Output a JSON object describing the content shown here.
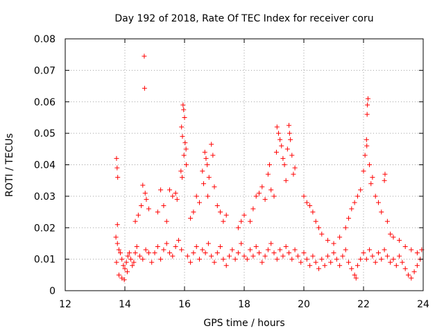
{
  "chart_data": {
    "type": "scatter",
    "title": "Day 192 of 2018, Rate Of TEC Index for receiver coru",
    "xlabel": "GPS time / hours",
    "ylabel": "ROTI / TECUs",
    "xlim": [
      12,
      24
    ],
    "ylim": [
      0,
      0.08
    ],
    "xticks": [
      "12",
      "14",
      "16",
      "18",
      "20",
      "22",
      "24"
    ],
    "yticks": [
      "0",
      "0.01",
      "0.02",
      "0.03",
      "0.04",
      "0.05",
      "0.06",
      "0.07",
      "0.08"
    ],
    "grid": true,
    "marker": "+",
    "color": "#ff0000",
    "series": [
      {
        "name": "ROTI",
        "points": [
          [
            13.72,
            0.042
          ],
          [
            13.74,
            0.039
          ],
          [
            13.76,
            0.036
          ],
          [
            13.75,
            0.021
          ],
          [
            14.65,
            0.0745
          ],
          [
            14.66,
            0.0643
          ],
          [
            15.95,
            0.059
          ],
          [
            15.97,
            0.0575
          ],
          [
            16.0,
            0.055
          ],
          [
            15.9,
            0.052
          ],
          [
            15.93,
            0.049
          ],
          [
            16.02,
            0.047
          ],
          [
            16.05,
            0.045
          ],
          [
            15.98,
            0.043
          ],
          [
            16.06,
            0.04
          ],
          [
            15.88,
            0.038
          ],
          [
            15.92,
            0.036
          ],
          [
            16.68,
            0.044
          ],
          [
            16.72,
            0.042
          ],
          [
            16.76,
            0.04
          ],
          [
            16.9,
            0.0465
          ],
          [
            16.95,
            0.043
          ],
          [
            16.6,
            0.038
          ],
          [
            16.82,
            0.036
          ],
          [
            16.64,
            0.034
          ],
          [
            17.0,
            0.033
          ],
          [
            16.78,
            0.03
          ],
          [
            19.1,
            0.052
          ],
          [
            19.15,
            0.05
          ],
          [
            19.2,
            0.048
          ],
          [
            19.25,
            0.046
          ],
          [
            19.08,
            0.044
          ],
          [
            19.3,
            0.042
          ],
          [
            19.5,
            0.0525
          ],
          [
            19.52,
            0.05
          ],
          [
            19.55,
            0.048
          ],
          [
            19.45,
            0.045
          ],
          [
            19.6,
            0.043
          ],
          [
            19.35,
            0.04
          ],
          [
            19.7,
            0.039
          ],
          [
            19.65,
            0.037
          ],
          [
            18.85,
            0.04
          ],
          [
            18.8,
            0.037
          ],
          [
            19.4,
            0.035
          ],
          [
            22.15,
            0.061
          ],
          [
            22.13,
            0.059
          ],
          [
            22.12,
            0.056
          ],
          [
            22.1,
            0.048
          ],
          [
            22.11,
            0.046
          ],
          [
            22.05,
            0.043
          ],
          [
            22.2,
            0.04
          ],
          [
            22.0,
            0.038
          ],
          [
            22.3,
            0.036
          ],
          [
            22.25,
            0.034
          ],
          [
            22.72,
            0.037
          ],
          [
            22.7,
            0.035
          ],
          [
            14.6,
            0.0335
          ],
          [
            14.68,
            0.031
          ],
          [
            14.72,
            0.029
          ],
          [
            14.55,
            0.027
          ],
          [
            14.45,
            0.024
          ],
          [
            14.35,
            0.022
          ],
          [
            14.8,
            0.026
          ],
          [
            15.5,
            0.032
          ],
          [
            15.6,
            0.03
          ],
          [
            15.7,
            0.031
          ],
          [
            15.75,
            0.029
          ],
          [
            15.3,
            0.027
          ],
          [
            15.1,
            0.025
          ],
          [
            15.2,
            0.032
          ],
          [
            15.4,
            0.022
          ],
          [
            16.4,
            0.03
          ],
          [
            16.5,
            0.028
          ],
          [
            16.3,
            0.025
          ],
          [
            16.2,
            0.023
          ],
          [
            17.1,
            0.027
          ],
          [
            17.2,
            0.025
          ],
          [
            17.3,
            0.022
          ],
          [
            17.4,
            0.024
          ],
          [
            17.8,
            0.02
          ],
          [
            17.9,
            0.022
          ],
          [
            18.0,
            0.024
          ],
          [
            18.2,
            0.022
          ],
          [
            18.3,
            0.026
          ],
          [
            18.4,
            0.03
          ],
          [
            18.5,
            0.031
          ],
          [
            18.6,
            0.033
          ],
          [
            18.7,
            0.029
          ],
          [
            18.9,
            0.032
          ],
          [
            19.0,
            0.03
          ],
          [
            20.0,
            0.03
          ],
          [
            20.1,
            0.028
          ],
          [
            20.2,
            0.027
          ],
          [
            20.3,
            0.025
          ],
          [
            20.4,
            0.022
          ],
          [
            20.5,
            0.02
          ],
          [
            20.6,
            0.018
          ],
          [
            20.8,
            0.016
          ],
          [
            21.0,
            0.015
          ],
          [
            21.2,
            0.017
          ],
          [
            21.4,
            0.02
          ],
          [
            21.5,
            0.023
          ],
          [
            21.6,
            0.026
          ],
          [
            21.7,
            0.028
          ],
          [
            21.8,
            0.03
          ],
          [
            21.9,
            0.032
          ],
          [
            22.4,
            0.03
          ],
          [
            22.5,
            0.028
          ],
          [
            22.6,
            0.025
          ],
          [
            22.8,
            0.022
          ],
          [
            22.9,
            0.018
          ],
          [
            23.0,
            0.017
          ],
          [
            23.2,
            0.016
          ],
          [
            23.4,
            0.014
          ],
          [
            23.6,
            0.013
          ],
          [
            23.8,
            0.012
          ],
          [
            23.95,
            0.013
          ],
          [
            13.7,
            0.017
          ],
          [
            13.75,
            0.015
          ],
          [
            13.8,
            0.013
          ],
          [
            13.85,
            0.012
          ],
          [
            13.9,
            0.01
          ],
          [
            13.95,
            0.008
          ],
          [
            14.0,
            0.007
          ],
          [
            14.05,
            0.009
          ],
          [
            14.1,
            0.011
          ],
          [
            14.15,
            0.012
          ],
          [
            14.2,
            0.01
          ],
          [
            14.25,
            0.008
          ],
          [
            14.3,
            0.009
          ],
          [
            14.35,
            0.012
          ],
          [
            14.4,
            0.014
          ],
          [
            14.5,
            0.011
          ],
          [
            14.6,
            0.01
          ],
          [
            14.7,
            0.013
          ],
          [
            14.8,
            0.012
          ],
          [
            14.9,
            0.009
          ],
          [
            13.72,
            0.009
          ],
          [
            13.8,
            0.005
          ],
          [
            13.9,
            0.004
          ],
          [
            13.98,
            0.0035
          ],
          [
            14.08,
            0.006
          ],
          [
            15.0,
            0.012
          ],
          [
            15.1,
            0.014
          ],
          [
            15.2,
            0.01
          ],
          [
            15.3,
            0.013
          ],
          [
            15.4,
            0.015
          ],
          [
            15.5,
            0.012
          ],
          [
            15.6,
            0.011
          ],
          [
            15.7,
            0.014
          ],
          [
            15.8,
            0.016
          ],
          [
            15.9,
            0.013
          ],
          [
            16.1,
            0.011
          ],
          [
            16.2,
            0.009
          ],
          [
            16.3,
            0.012
          ],
          [
            16.4,
            0.014
          ],
          [
            16.5,
            0.01
          ],
          [
            16.6,
            0.013
          ],
          [
            16.7,
            0.012
          ],
          [
            16.8,
            0.015
          ],
          [
            16.9,
            0.011
          ],
          [
            17.0,
            0.009
          ],
          [
            17.1,
            0.012
          ],
          [
            17.2,
            0.014
          ],
          [
            17.3,
            0.01
          ],
          [
            17.4,
            0.008
          ],
          [
            17.5,
            0.011
          ],
          [
            17.6,
            0.013
          ],
          [
            17.7,
            0.01
          ],
          [
            17.8,
            0.012
          ],
          [
            17.9,
            0.015
          ],
          [
            18.0,
            0.011
          ],
          [
            18.1,
            0.01
          ],
          [
            18.2,
            0.013
          ],
          [
            18.3,
            0.011
          ],
          [
            18.4,
            0.014
          ],
          [
            18.5,
            0.012
          ],
          [
            18.6,
            0.009
          ],
          [
            18.7,
            0.011
          ],
          [
            18.8,
            0.013
          ],
          [
            18.9,
            0.015
          ],
          [
            19.0,
            0.012
          ],
          [
            19.1,
            0.01
          ],
          [
            19.2,
            0.013
          ],
          [
            19.3,
            0.011
          ],
          [
            19.4,
            0.014
          ],
          [
            19.5,
            0.012
          ],
          [
            19.6,
            0.01
          ],
          [
            19.7,
            0.013
          ],
          [
            19.8,
            0.011
          ],
          [
            19.9,
            0.009
          ],
          [
            20.0,
            0.012
          ],
          [
            20.1,
            0.01
          ],
          [
            20.2,
            0.008
          ],
          [
            20.3,
            0.011
          ],
          [
            20.4,
            0.009
          ],
          [
            20.5,
            0.007
          ],
          [
            20.6,
            0.01
          ],
          [
            20.7,
            0.008
          ],
          [
            20.8,
            0.011
          ],
          [
            20.9,
            0.009
          ],
          [
            21.0,
            0.012
          ],
          [
            21.1,
            0.01
          ],
          [
            21.2,
            0.008
          ],
          [
            21.3,
            0.011
          ],
          [
            21.4,
            0.013
          ],
          [
            21.5,
            0.009
          ],
          [
            21.6,
            0.007
          ],
          [
            21.7,
            0.005
          ],
          [
            21.75,
            0.004
          ],
          [
            21.8,
            0.008
          ],
          [
            21.9,
            0.01
          ],
          [
            22.0,
            0.012
          ],
          [
            22.1,
            0.01
          ],
          [
            22.2,
            0.013
          ],
          [
            22.3,
            0.011
          ],
          [
            22.4,
            0.009
          ],
          [
            22.5,
            0.012
          ],
          [
            22.6,
            0.01
          ],
          [
            22.7,
            0.013
          ],
          [
            22.8,
            0.011
          ],
          [
            22.9,
            0.009
          ],
          [
            23.0,
            0.01
          ],
          [
            23.1,
            0.008
          ],
          [
            23.2,
            0.011
          ],
          [
            23.3,
            0.009
          ],
          [
            23.4,
            0.007
          ],
          [
            23.5,
            0.005
          ],
          [
            23.6,
            0.004
          ],
          [
            23.7,
            0.006
          ],
          [
            23.8,
            0.008
          ],
          [
            23.9,
            0.01
          ]
        ]
      }
    ]
  }
}
